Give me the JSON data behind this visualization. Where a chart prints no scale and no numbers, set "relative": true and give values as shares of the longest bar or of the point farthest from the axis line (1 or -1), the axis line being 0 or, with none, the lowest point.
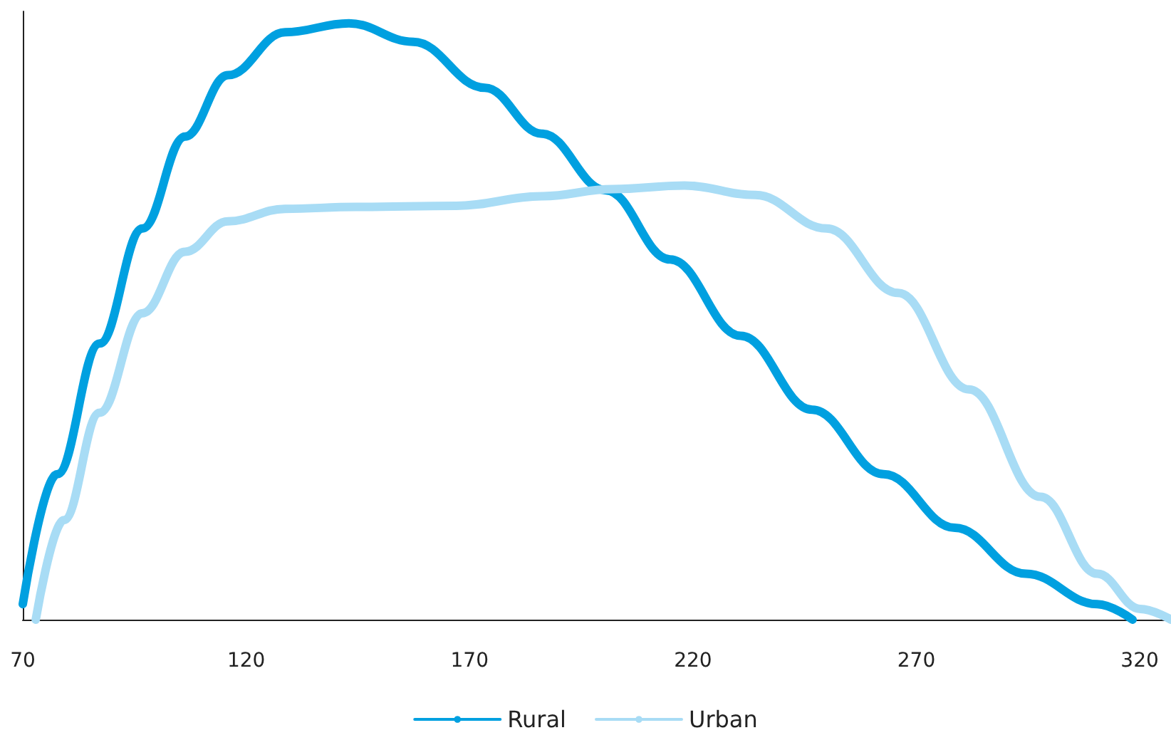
{
  "chart_data": {
    "type": "line",
    "relative": true,
    "xlim": [
      70,
      327
    ],
    "xticks": [
      70,
      120,
      170,
      220,
      270,
      320
    ],
    "grid": false,
    "legend": "bottom",
    "marker": "none",
    "line_style": "solid",
    "series": [
      {
        "name": "Rural",
        "color": "#00a0e0",
        "x": [
          70,
          77.7,
          87.2,
          96.8,
          106.3,
          115.9,
          128.7,
          143,
          157.4,
          173.4,
          186.2,
          200.5,
          214.9,
          230.7,
          246.7,
          262.7,
          278.6,
          294.5,
          310.5,
          318.4
        ],
        "values": [
          0.026,
          0.244,
          0.463,
          0.656,
          0.81,
          0.913,
          0.985,
          1,
          0.969,
          0.892,
          0.815,
          0.72,
          0.604,
          0.476,
          0.352,
          0.244,
          0.154,
          0.077,
          0.026,
          0
        ]
      },
      {
        "name": "Urban",
        "color": "#a8dcf5",
        "x": [
          72.9,
          79.2,
          87.2,
          96.8,
          106.3,
          115.9,
          128.7,
          144.6,
          167,
          186.2,
          202.1,
          218.1,
          234,
          249.9,
          265.9,
          281.8,
          297.8,
          310.5,
          320.1,
          327
        ],
        "values": [
          0,
          0.167,
          0.347,
          0.514,
          0.617,
          0.668,
          0.689,
          0.692,
          0.694,
          0.71,
          0.722,
          0.728,
          0.712,
          0.656,
          0.548,
          0.386,
          0.206,
          0.077,
          0.018,
          0
        ]
      }
    ]
  }
}
